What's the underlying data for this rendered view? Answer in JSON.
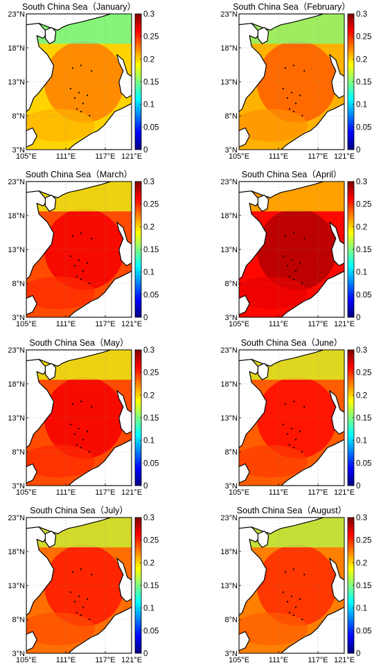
{
  "panels": [
    {
      "title": "South China Sea（January）",
      "level": 0.2
    },
    {
      "title": "South China Sea（February）",
      "level": 0.21
    },
    {
      "title": "South China Sea（March）",
      "level": 0.24
    },
    {
      "title": "South China Sea（April）",
      "level": 0.26
    },
    {
      "title": "South China Sea（May）",
      "level": 0.24
    },
    {
      "title": "South China Sea（June）",
      "level": 0.235
    },
    {
      "title": "South China Sea（July）",
      "level": 0.23
    },
    {
      "title": "South China Sea（August）",
      "level": 0.225
    }
  ],
  "x_ticks": [
    "105°E",
    "111°E",
    "117°E",
    "121°E"
  ],
  "y_ticks": [
    "23°N",
    "18°N",
    "13°N",
    "8°N",
    "3°N"
  ],
  "colorbar_ticks": [
    "0.3",
    "0.25",
    "0.2",
    "0.15",
    "0.1",
    "0.05",
    "0"
  ],
  "colorbar_range": [
    0,
    0.3
  ],
  "land_color": "#ffffff",
  "coast_color": "#000000",
  "colormap": [
    "#00007f",
    "#0000ff",
    "#007fff",
    "#00ffff",
    "#7fff7f",
    "#ffff00",
    "#ff7f00",
    "#ff0000",
    "#7f0000"
  ]
}
